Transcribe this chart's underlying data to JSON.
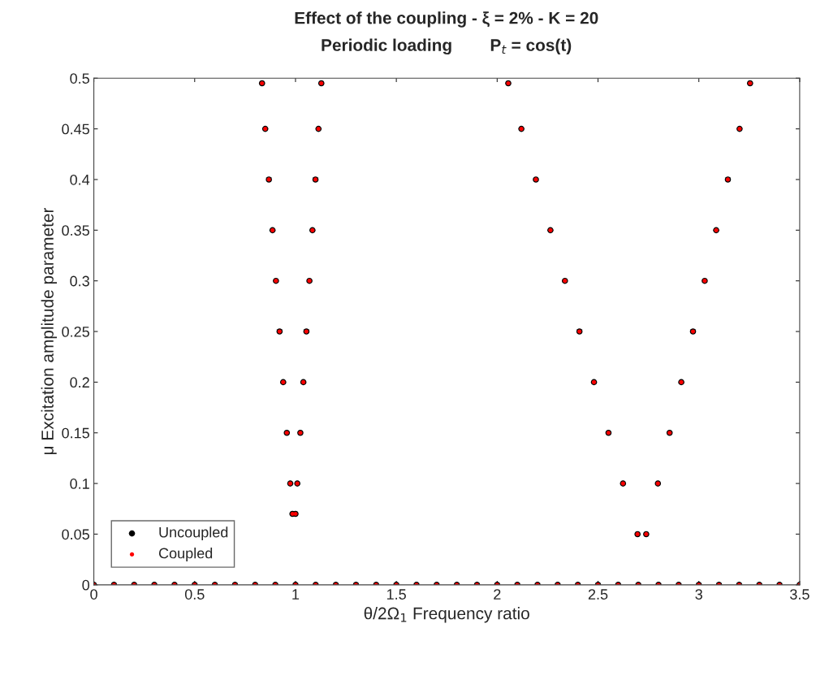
{
  "chart_data": {
    "type": "scatter",
    "title": "Effect of the coupling - ξ = 2% - K = 20",
    "subtitle": "Periodic loading        P$_{t}$ = cos(t)",
    "xlabel": "θ/2Ω$_{1}$ Frequency ratio",
    "ylabel": "μ Excitation amplitude parameter",
    "series": [
      {
        "name": "Uncoupled",
        "color": "#000000",
        "x": [
          0.834,
          0.85,
          0.868,
          0.886,
          0.903,
          0.921,
          0.939,
          0.957,
          0.974,
          0.985,
          1.0,
          1.009,
          1.024,
          1.039,
          1.054,
          1.069,
          1.084,
          1.099,
          1.114,
          1.128,
          2.055,
          2.12,
          2.192,
          2.264,
          2.336,
          2.408,
          2.48,
          2.552,
          2.624,
          2.696,
          2.739,
          2.797,
          2.855,
          2.913,
          2.971,
          3.029,
          3.086,
          3.144,
          3.202,
          3.254,
          0,
          0.1,
          0.2,
          0.3,
          0.4,
          0.5,
          0.6,
          0.7,
          0.8,
          0.9,
          1.0,
          1.1,
          1.2,
          1.3,
          1.4,
          1.5,
          1.6,
          1.7,
          1.8,
          1.9,
          2.0,
          2.1,
          2.2,
          2.3,
          2.4,
          2.5,
          2.6,
          2.7,
          2.8,
          2.9,
          3.0,
          3.1,
          3.2,
          3.3,
          3.4,
          3.5
        ],
        "values": [
          0.495,
          0.45,
          0.4,
          0.35,
          0.3,
          0.25,
          0.2,
          0.15,
          0.1,
          0.07,
          0.07,
          0.1,
          0.15,
          0.2,
          0.25,
          0.3,
          0.35,
          0.4,
          0.45,
          0.495,
          0.495,
          0.45,
          0.4,
          0.35,
          0.3,
          0.25,
          0.2,
          0.15,
          0.1,
          0.05,
          0.05,
          0.1,
          0.15,
          0.2,
          0.25,
          0.3,
          0.35,
          0.4,
          0.45,
          0.495,
          0,
          0,
          0,
          0,
          0,
          0,
          0,
          0,
          0,
          0,
          0,
          0,
          0,
          0,
          0,
          0,
          0,
          0,
          0,
          0,
          0,
          0,
          0,
          0,
          0,
          0,
          0,
          0,
          0,
          0,
          0,
          0,
          0,
          0,
          0,
          0
        ]
      },
      {
        "name": "Coupled",
        "color": "#ff0000",
        "x": [
          0.834,
          0.85,
          0.868,
          0.886,
          0.903,
          0.921,
          0.939,
          0.957,
          0.974,
          0.985,
          1.0,
          1.009,
          1.024,
          1.039,
          1.054,
          1.069,
          1.084,
          1.099,
          1.114,
          1.128,
          2.055,
          2.12,
          2.192,
          2.264,
          2.336,
          2.408,
          2.48,
          2.552,
          2.624,
          2.696,
          2.739,
          2.797,
          2.855,
          2.913,
          2.971,
          3.029,
          3.086,
          3.144,
          3.202,
          3.254,
          0,
          0.1,
          0.2,
          0.3,
          0.4,
          0.5,
          0.6,
          0.7,
          0.8,
          0.9,
          1.0,
          1.1,
          1.2,
          1.3,
          1.4,
          1.5,
          1.6,
          1.7,
          1.8,
          1.9,
          2.0,
          2.1,
          2.2,
          2.3,
          2.4,
          2.5,
          2.6,
          2.7,
          2.8,
          2.9,
          3.0,
          3.1,
          3.2,
          3.3,
          3.4,
          3.5
        ],
        "values": [
          0.495,
          0.45,
          0.4,
          0.35,
          0.3,
          0.25,
          0.2,
          0.15,
          0.1,
          0.07,
          0.07,
          0.1,
          0.15,
          0.2,
          0.25,
          0.3,
          0.35,
          0.4,
          0.45,
          0.495,
          0.495,
          0.45,
          0.4,
          0.35,
          0.3,
          0.25,
          0.2,
          0.15,
          0.1,
          0.05,
          0.05,
          0.1,
          0.15,
          0.2,
          0.25,
          0.3,
          0.35,
          0.4,
          0.45,
          0.495,
          0,
          0,
          0,
          0,
          0,
          0,
          0,
          0,
          0,
          0,
          0,
          0,
          0,
          0,
          0,
          0,
          0,
          0,
          0,
          0,
          0,
          0,
          0,
          0,
          0,
          0,
          0,
          0,
          0,
          0,
          0,
          0,
          0,
          0,
          0,
          0
        ]
      }
    ],
    "xlim": [
      0,
      3.5
    ],
    "xticks": [
      0,
      0.5,
      1,
      1.5,
      2,
      2.5,
      3,
      3.5
    ],
    "ylim": [
      0,
      0.5
    ],
    "yticks": [
      0,
      0.05,
      0.1,
      0.15,
      0.2,
      0.25,
      0.3,
      0.35,
      0.4,
      0.45,
      0.5
    ],
    "marker": "circle",
    "grid": false,
    "legend": "bottom left"
  }
}
